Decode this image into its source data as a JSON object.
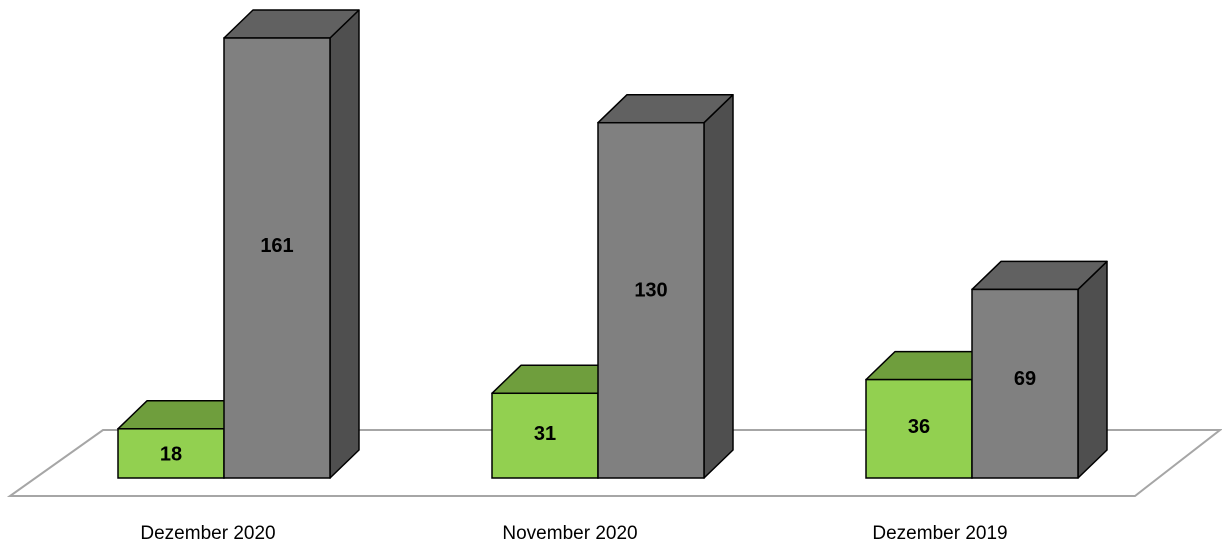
{
  "chart_data": {
    "type": "bar",
    "categories": [
      "Dezember 2020",
      "November 2020",
      "Dezember 2019"
    ],
    "series": [
      {
        "values": [
          18,
          31,
          36
        ],
        "color": "#92D050"
      },
      {
        "values": [
          161,
          130,
          69
        ],
        "color": "#808080"
      }
    ],
    "ylim": [
      0,
      161
    ],
    "grid": false,
    "legend": "none",
    "style": "3d-column"
  }
}
